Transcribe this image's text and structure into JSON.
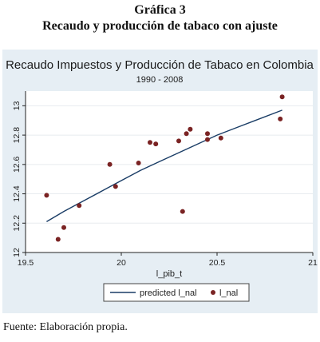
{
  "figure": {
    "label": "Gráfica 3",
    "caption": "Recaudo y producción de tabaco con ajuste",
    "source": "Fuente: Elaboración propia."
  },
  "chart_data": {
    "type": "scatter",
    "title": "Recaudo Impuestos y Producción de Tabaco en Colombia",
    "subtitle": "1990 - 2008",
    "xlabel": "l_pib_t",
    "ylabel": "",
    "xlim": [
      19.5,
      21
    ],
    "ylim": [
      12,
      13.1
    ],
    "xticks": [
      19.5,
      20,
      20.5,
      21
    ],
    "yticks": [
      12,
      12.2,
      12.4,
      12.6,
      12.8,
      13
    ],
    "xtick_labels": [
      "19.5",
      "20",
      "20.5",
      "21"
    ],
    "ytick_labels": [
      "12",
      "12.2",
      "12.4",
      "12.6",
      "12.8",
      "13"
    ],
    "grid": true,
    "legend_position": "bottom",
    "colors": {
      "fit_line": "#1a3d66",
      "points": "#7a2323",
      "grid": "#ffffff",
      "panel_bg": "#e6eef4",
      "plot_bg": "#ffffff"
    },
    "series": [
      {
        "name": "predicted l_nal",
        "type": "line",
        "x": [
          19.61,
          19.7,
          19.8,
          19.9,
          20.0,
          20.1,
          20.2,
          20.3,
          20.4,
          20.5,
          20.6,
          20.7,
          20.84
        ],
        "y": [
          12.21,
          12.28,
          12.35,
          12.42,
          12.49,
          12.56,
          12.62,
          12.68,
          12.74,
          12.8,
          12.85,
          12.9,
          12.97
        ]
      },
      {
        "name": "l_nal",
        "type": "scatter",
        "x": [
          19.61,
          19.67,
          19.7,
          19.78,
          19.94,
          19.97,
          20.09,
          20.15,
          20.18,
          20.3,
          20.32,
          20.34,
          20.36,
          20.45,
          20.45,
          20.52,
          20.83,
          20.84
        ],
        "y": [
          12.39,
          12.09,
          12.17,
          12.32,
          12.6,
          12.45,
          12.61,
          12.75,
          12.74,
          12.76,
          12.28,
          12.81,
          12.84,
          12.81,
          12.77,
          12.78,
          12.91,
          13.06
        ]
      }
    ]
  }
}
